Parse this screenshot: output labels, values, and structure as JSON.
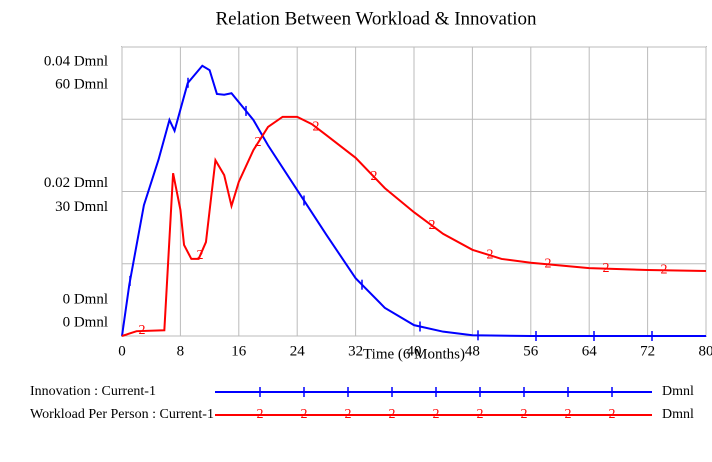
{
  "chart_data": {
    "type": "line",
    "title": "Relation Between Workload & Innovation",
    "x_label": "Time (6 Months)",
    "xlim": [
      0,
      80
    ],
    "xticks": [
      0,
      8,
      16,
      24,
      32,
      40,
      48,
      56,
      64,
      72,
      80
    ],
    "ylim": [
      0,
      0.04
    ],
    "yticks": [
      {
        "value": 0,
        "label": "0 Dmnl"
      },
      {
        "value": 0.02,
        "label": "0.02 Dmnl"
      },
      {
        "value": 0.04,
        "label": "0.04 Dmnl"
      }
    ],
    "y2lim": [
      0,
      60
    ],
    "y2ticks": [
      {
        "value": 0,
        "label": "0 Dmnl"
      },
      {
        "value": 30,
        "label": "30 Dmnl"
      },
      {
        "value": 60,
        "label": "60 Dmnl"
      }
    ],
    "ygrid": [
      0,
      0.01,
      0.02,
      0.03,
      0.04
    ],
    "grid": true,
    "series": [
      {
        "name": "Innovation : Current-1",
        "units": "Dmnl",
        "color": "#0000ff",
        "axis": "y",
        "x": [
          0,
          1,
          3,
          5,
          6.5,
          7.2,
          9,
          11,
          12,
          13,
          14,
          15,
          18,
          20,
          24,
          28,
          32,
          36,
          40,
          44,
          48,
          56,
          64,
          72,
          80
        ],
        "values": [
          0,
          0.0071,
          0.0181,
          0.0244,
          0.0299,
          0.0284,
          0.035,
          0.0374,
          0.0368,
          0.0335,
          0.0334,
          0.0336,
          0.0299,
          0.0264,
          0.0202,
          0.014,
          0.008,
          0.0039,
          0.0015,
          0.0006,
          0.0001,
          0,
          0,
          0,
          0
        ]
      },
      {
        "name": "Workload Per Person : Current-1",
        "units": "Dmnl",
        "color": "#ff0000",
        "axis": "y2",
        "marker": "2",
        "x": [
          0,
          2,
          5.8,
          7,
          8,
          8.5,
          9.5,
          10.5,
          11.5,
          12.8,
          14,
          15,
          16,
          18,
          20,
          22,
          24,
          26,
          28,
          32,
          36,
          40,
          44,
          48,
          52,
          56,
          64,
          72,
          80
        ],
        "values": [
          0,
          1.0,
          1.2,
          33.8,
          26.2,
          18.9,
          16.0,
          16.0,
          19.5,
          36.5,
          33.4,
          27.0,
          32.0,
          38.6,
          43.4,
          45.5,
          45.5,
          44.0,
          41.7,
          37.0,
          30.7,
          25.7,
          21.2,
          17.9,
          16.0,
          15.2,
          14.1,
          13.7,
          13.5
        ]
      }
    ]
  }
}
